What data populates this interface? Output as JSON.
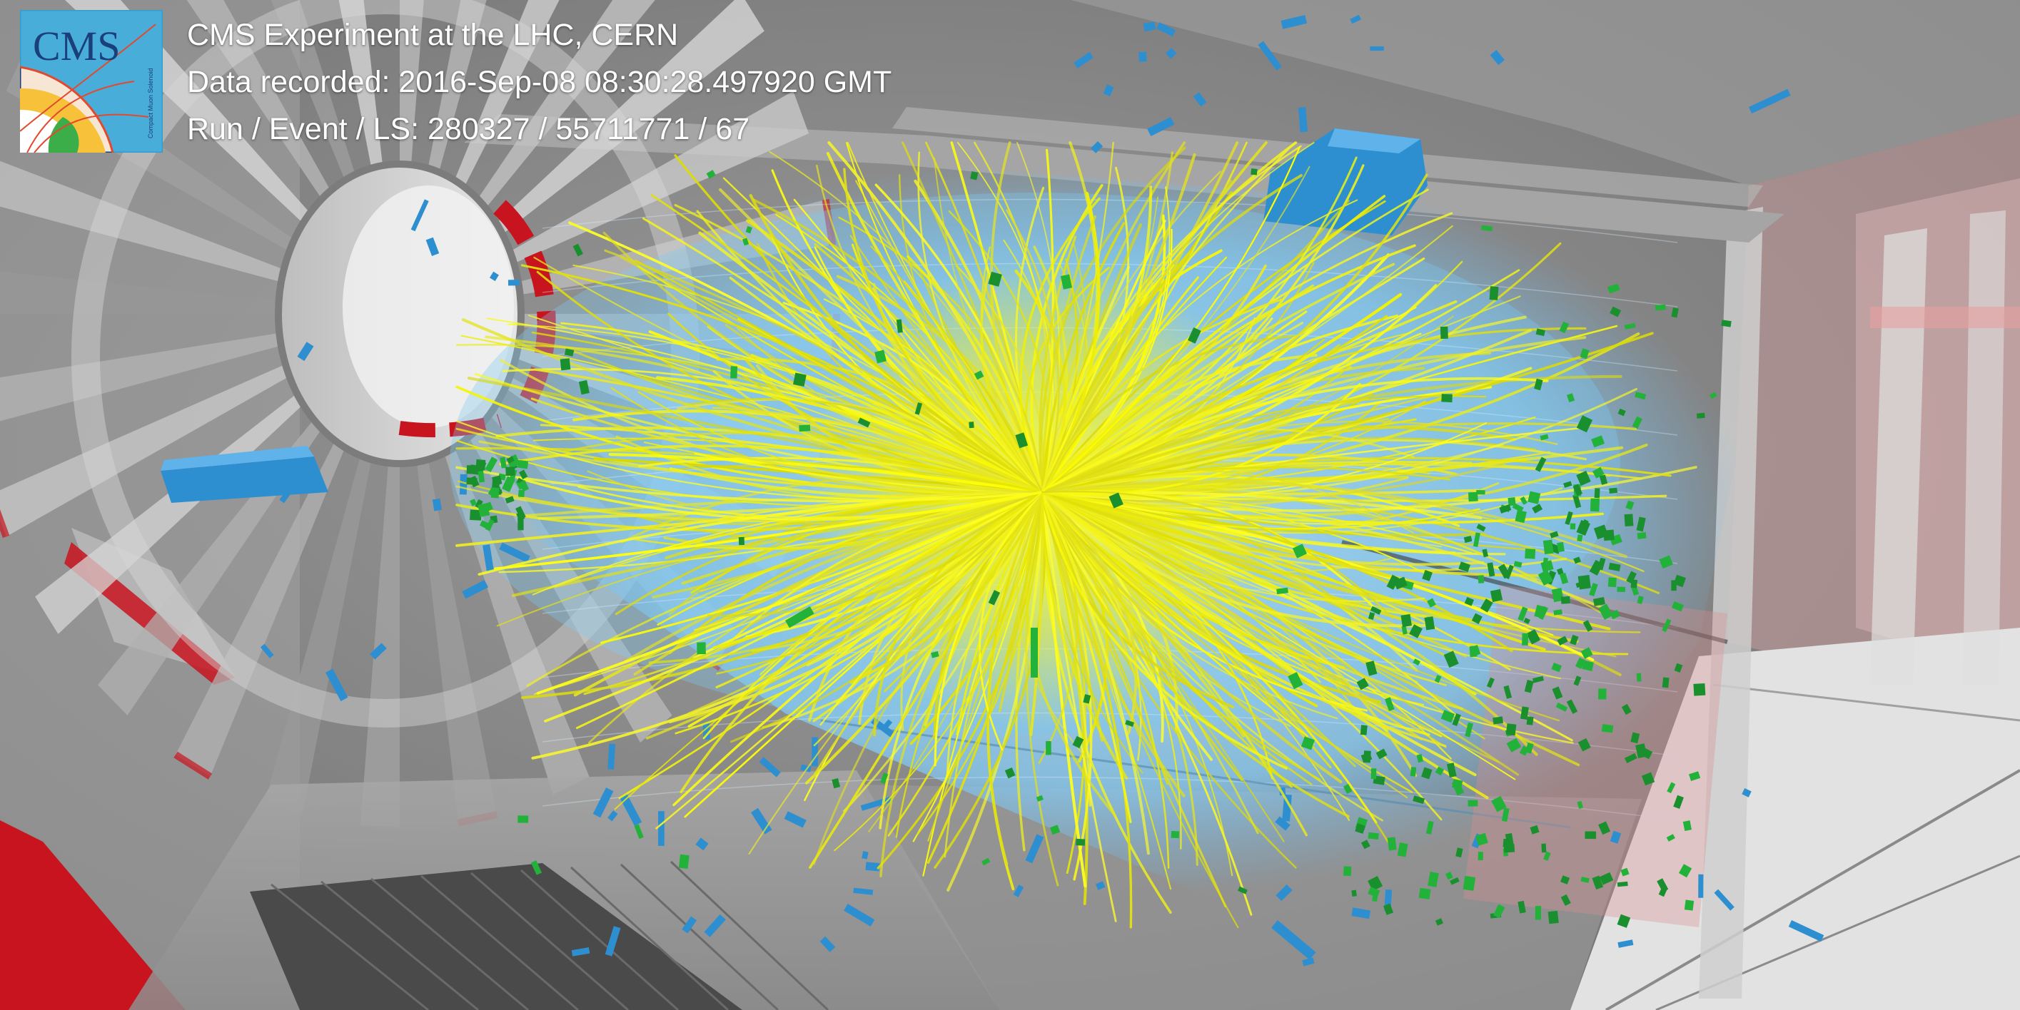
{
  "overlay": {
    "title": "CMS Experiment at the LHC, CERN",
    "data_recorded": "Data recorded: 2016-Sep-08 08:30:28.497920 GMT",
    "run_event_ls": "Run / Event / LS: 280327 / 55711771 / 67"
  },
  "logo": {
    "wordmark": "CMS",
    "tagline": "Compact Muon Solenoid"
  },
  "colors": {
    "tracks": "#f4f21c",
    "tracker_volume": "#7ec8f2",
    "hits": "#22b23a",
    "muon_chambers": "#2e8fd0",
    "detector_red": "#c8141e",
    "detector_grey": "#9a9a9a",
    "background": "#8a8a8a"
  }
}
